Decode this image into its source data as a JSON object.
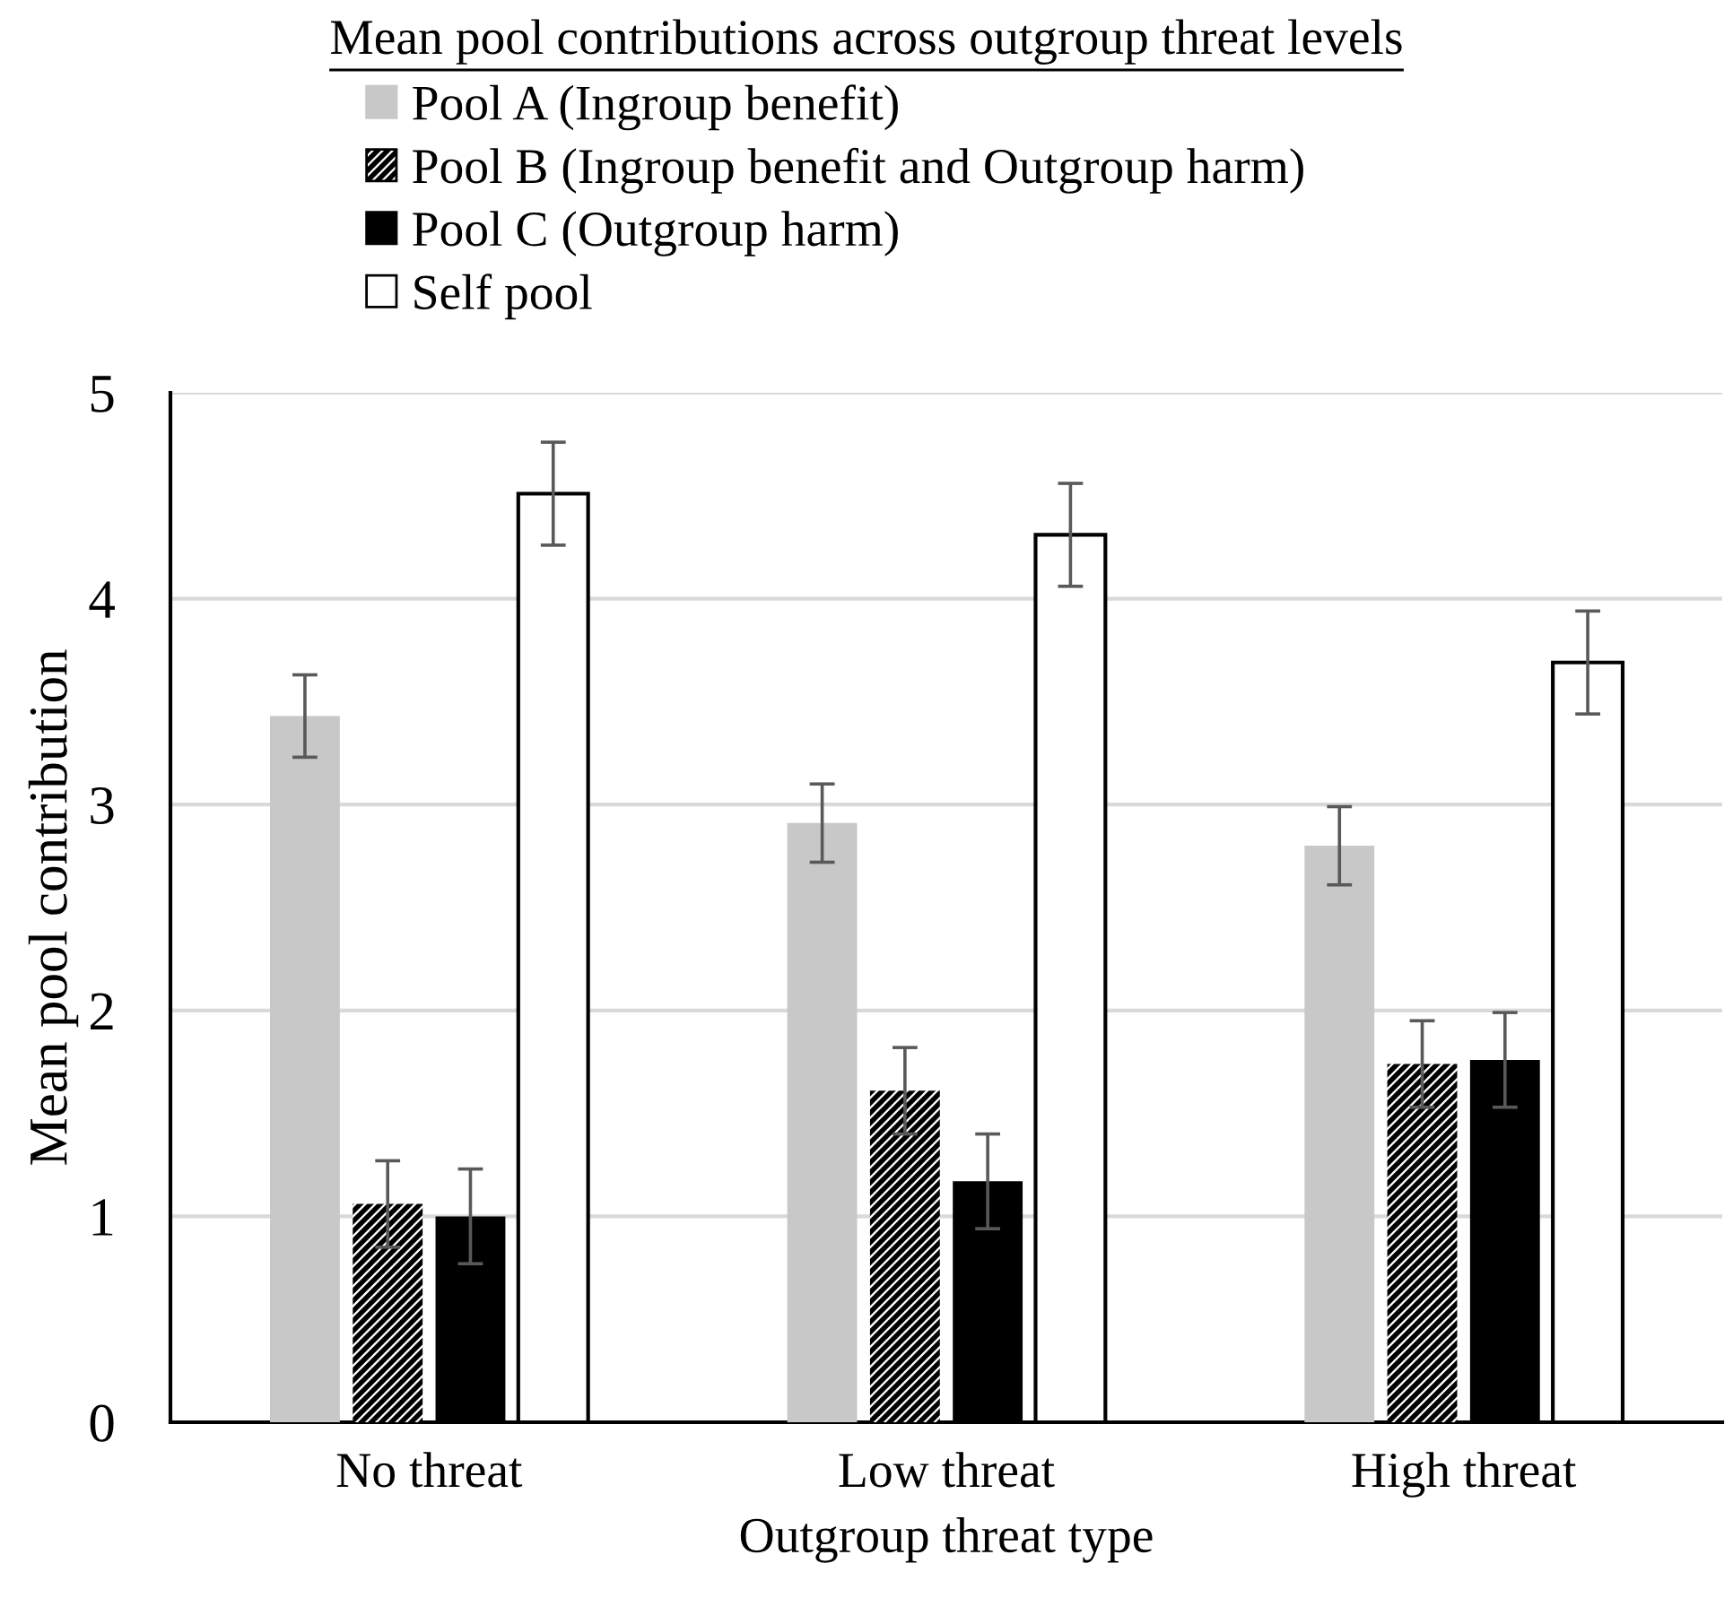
{
  "chart_data": {
    "type": "bar",
    "title": "Mean pool contributions across outgroup threat levels",
    "xlabel": "Outgroup threat type",
    "ylabel": "Mean pool contribution",
    "categories": [
      "No threat",
      "Low threat",
      "High threat"
    ],
    "series": [
      {
        "name": "Pool A (Ingroup benefit)",
        "color": "#c8c8c8",
        "values": [
          3.43,
          2.91,
          2.8
        ],
        "errors": [
          0.2,
          0.19,
          0.19
        ]
      },
      {
        "name": "Pool B (Ingroup benefit and Outgroup harm)",
        "color": "#000000",
        "values": [
          1.06,
          1.61,
          1.74
        ],
        "errors": [
          0.21,
          0.21,
          0.21
        ]
      },
      {
        "name": "Pool C (Outgroup harm)",
        "color": "#000000",
        "values": [
          1.0,
          1.17,
          1.76
        ],
        "errors": [
          0.23,
          0.23,
          0.23
        ]
      },
      {
        "name": "Self pool",
        "color": "#ffffff",
        "values": [
          4.51,
          4.31,
          3.69
        ],
        "errors": [
          0.25,
          0.25,
          0.25
        ]
      }
    ],
    "ylim": [
      0,
      5
    ],
    "yticks": [
      0,
      1,
      2,
      3,
      4,
      5
    ],
    "grid": "y",
    "legend": "top"
  }
}
